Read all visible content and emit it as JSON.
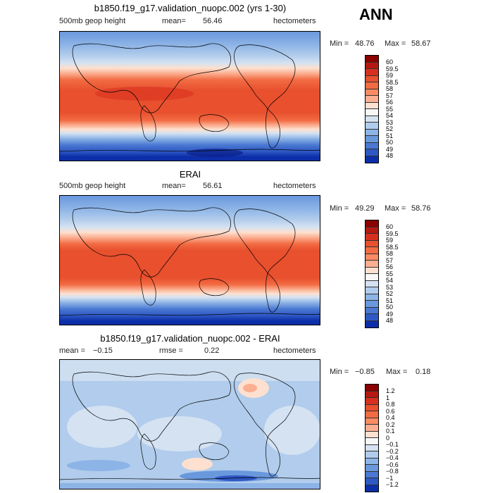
{
  "season": "ANN",
  "panels": [
    {
      "title": "b1850.f19_g17.validation_nuopc.002 (yrs 1-30)",
      "left_label": "500mb geop height",
      "mean_label": "mean=",
      "mean_value": "56.46",
      "units": "hectometers",
      "min_label": "Min =",
      "min_value": "48.76",
      "max_label": "Max =",
      "max_value": "58.67",
      "colorbar": {
        "ticks": [
          "60",
          "59.5",
          "59",
          "58.5",
          "58",
          "57",
          "56",
          "55",
          "54",
          "53",
          "52",
          "51",
          "50",
          "49",
          "48"
        ],
        "colors": [
          "#8b0000",
          "#b61812",
          "#d7301f",
          "#e8502e",
          "#f26b43",
          "#fa8b62",
          "#fcae91",
          "#fde0cf",
          "#f7f7f7",
          "#d4e2f2",
          "#b1ccec",
          "#8db4e6",
          "#6a98dd",
          "#4a78d2",
          "#2e58c4",
          "#0c2ea8"
        ]
      }
    },
    {
      "title": "ERAI",
      "left_label": "500mb geop height",
      "mean_label": "mean=",
      "mean_value": "56.61",
      "units": "hectometers",
      "min_label": "Min =",
      "min_value": "49.29",
      "max_label": "Max =",
      "max_value": "58.76",
      "colorbar": {
        "ticks": [
          "60",
          "59.5",
          "59",
          "58.5",
          "58",
          "57",
          "56",
          "55",
          "54",
          "53",
          "52",
          "51",
          "50",
          "49",
          "48"
        ],
        "colors": [
          "#8b0000",
          "#b61812",
          "#d7301f",
          "#e8502e",
          "#f26b43",
          "#fa8b62",
          "#fcae91",
          "#fde0cf",
          "#f7f7f7",
          "#d4e2f2",
          "#b1ccec",
          "#8db4e6",
          "#6a98dd",
          "#4a78d2",
          "#2e58c4",
          "#0c2ea8"
        ]
      }
    },
    {
      "title": "b1850.f19_g17.validation_nuopc.002 - ERAI",
      "left_label": "mean =",
      "left_value": "−0.15",
      "mid_label": "rmse =",
      "mid_value": "0.22",
      "units": "hectometers",
      "min_label": "Min =",
      "min_value": "−0.85",
      "max_label": "Max =",
      "max_value": "0.18",
      "colorbar": {
        "ticks": [
          "1.2",
          "1",
          "0.8",
          "0.6",
          "0.4",
          "0.2",
          "0.1",
          "0",
          "−0.1",
          "−0.2",
          "−0.4",
          "−0.6",
          "−0.8",
          "−1",
          "−1.2"
        ],
        "colors": [
          "#8b0000",
          "#b61812",
          "#d7301f",
          "#e8502e",
          "#f26b43",
          "#fa8b62",
          "#fcae91",
          "#fde0cf",
          "#f7f7f7",
          "#d4e2f2",
          "#b1ccec",
          "#8db4e6",
          "#6a98dd",
          "#4a78d2",
          "#2e58c4",
          "#0c2ea8"
        ]
      }
    }
  ]
}
